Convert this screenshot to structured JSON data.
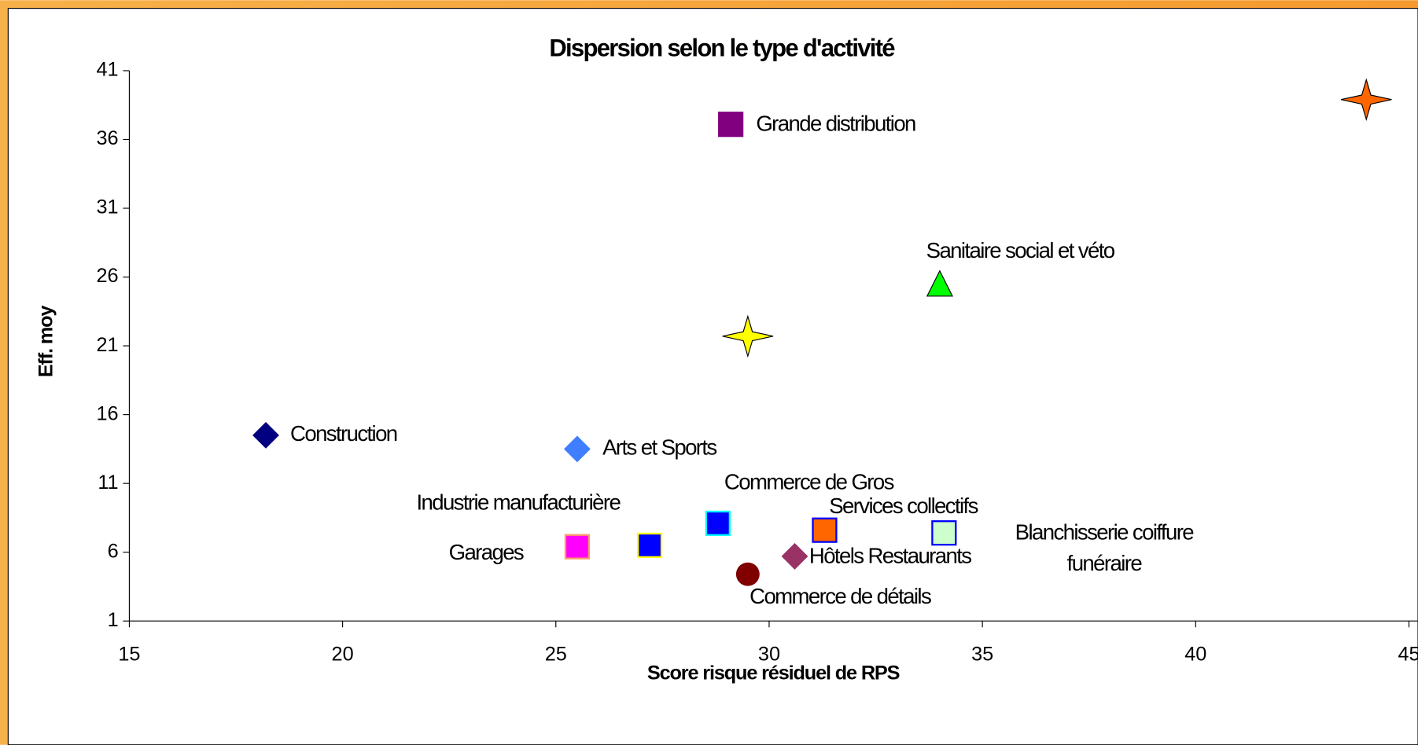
{
  "chart_data": {
    "type": "scatter",
    "title": "Dispersion selon le type d'activité",
    "x_label": "Score risque résiduel de RPS",
    "y_label": "Eff. moy",
    "xlim": [
      15,
      45
    ],
    "xticks": [
      15,
      20,
      25,
      30,
      35,
      40,
      45
    ],
    "ylim": [
      1,
      41
    ],
    "yticks": [
      1,
      6,
      11,
      16,
      21,
      26,
      31,
      36,
      41
    ],
    "series": [
      {
        "name": "Construction",
        "color": "#000080",
        "marker": "diamond",
        "x": [
          18.2
        ],
        "values": [
          14.5
        ]
      },
      {
        "name": "Arts et Sports",
        "color": "#3f7fff",
        "marker": "diamond",
        "x": [
          25.5
        ],
        "values": [
          13.5
        ]
      },
      {
        "name": "Grande distribution",
        "color": "#800080",
        "marker": "square",
        "x": [
          29.1
        ],
        "values": [
          37.1
        ]
      },
      {
        "name": "Sanitaire social et véto",
        "color": "#00ff00",
        "marker": "triangle",
        "x": [
          34.0
        ],
        "values": [
          25.4
        ]
      },
      {
        "color": "#ffff00",
        "marker": "star",
        "x": [
          29.5
        ],
        "values": [
          21.7
        ]
      },
      {
        "color": "#ff6600",
        "marker": "star",
        "x": [
          44.0
        ],
        "values": [
          38.9
        ]
      },
      {
        "name": "Commerce de Gros",
        "color": "#0000ff",
        "edge": "#00ffff",
        "marker": "square",
        "x": [
          28.8
        ],
        "values": [
          8.1
        ]
      },
      {
        "name": "Industrie manufacturière",
        "color": "#0000ff",
        "edge": "#ffff00",
        "marker": "square",
        "x": [
          27.2
        ],
        "values": [
          6.5
        ]
      },
      {
        "name": "Garages",
        "color": "#ff00ff",
        "edge": "#ff9966",
        "marker": "square",
        "x": [
          25.5
        ],
        "values": [
          6.4
        ]
      },
      {
        "name": "Services collectifs",
        "color": "#ff6600",
        "edge": "#0000ff",
        "marker": "square",
        "x": [
          31.3
        ],
        "values": [
          7.6
        ]
      },
      {
        "name": "Blanchisserie coiffure funéraire",
        "color": "#ccffcc",
        "edge": "#0000ff",
        "marker": "square",
        "x": [
          34.1
        ],
        "values": [
          7.4
        ]
      },
      {
        "name": "Hôtels Restaurants",
        "color": "#993366",
        "marker": "diamond",
        "x": [
          30.6
        ],
        "values": [
          5.7
        ]
      },
      {
        "name": "Commerce de détails",
        "color": "#800000",
        "marker": "circle",
        "x": [
          29.5
        ],
        "values": [
          4.4
        ]
      }
    ]
  }
}
